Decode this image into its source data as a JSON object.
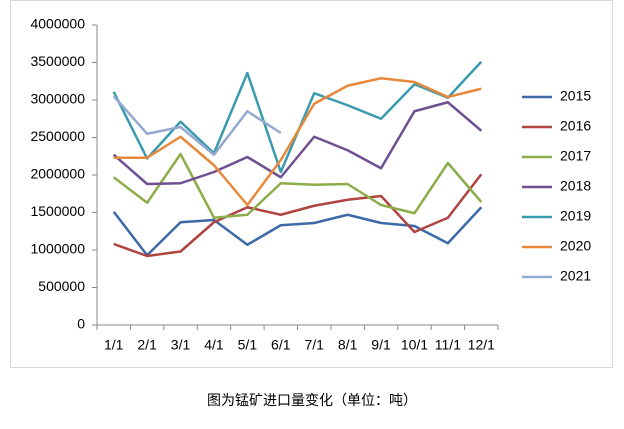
{
  "chart_data": {
    "type": "line",
    "caption": "图为锰矿进口量变化（单位：吨）",
    "categories": [
      "1/1",
      "2/1",
      "3/1",
      "4/1",
      "5/1",
      "6/1",
      "7/1",
      "8/1",
      "9/1",
      "10/1",
      "11/1",
      "12/1"
    ],
    "ylim": [
      0,
      4000000
    ],
    "yticks": [
      0,
      500000,
      1000000,
      1500000,
      2000000,
      2500000,
      3000000,
      3500000,
      4000000
    ],
    "grid": false,
    "legend": "right",
    "series": [
      {
        "name": "2015",
        "color": "#3d6aa7",
        "values": [
          1510000,
          930000,
          1370000,
          1400000,
          1070000,
          1330000,
          1360000,
          1470000,
          1360000,
          1320000,
          1090000,
          1570000
        ]
      },
      {
        "name": "2016",
        "color": "#b04440",
        "values": [
          1080000,
          920000,
          980000,
          1370000,
          1570000,
          1470000,
          1590000,
          1670000,
          1720000,
          1240000,
          1430000,
          2010000
        ]
      },
      {
        "name": "2017",
        "color": "#8cad4a",
        "values": [
          1970000,
          1630000,
          2280000,
          1430000,
          1470000,
          1890000,
          1870000,
          1880000,
          1600000,
          1490000,
          2160000,
          1640000
        ]
      },
      {
        "name": "2018",
        "color": "#6f4f92",
        "values": [
          2270000,
          1880000,
          1890000,
          2040000,
          2240000,
          1970000,
          2510000,
          2330000,
          2090000,
          2850000,
          2970000,
          2590000
        ]
      },
      {
        "name": "2019",
        "color": "#3a9bb0",
        "values": [
          3110000,
          2220000,
          2710000,
          2290000,
          3360000,
          2040000,
          3090000,
          2930000,
          2750000,
          3210000,
          3030000,
          3510000
        ]
      },
      {
        "name": "2020",
        "color": "#e8883a",
        "values": [
          2230000,
          2230000,
          2510000,
          2130000,
          1600000,
          2200000,
          2950000,
          3190000,
          3290000,
          3240000,
          3040000,
          3150000
        ]
      },
      {
        "name": "2021",
        "color": "#93a9cf",
        "values": [
          3050000,
          2550000,
          2640000,
          2270000,
          2850000,
          2560000,
          null,
          null,
          null,
          null,
          null,
          null
        ]
      }
    ]
  }
}
